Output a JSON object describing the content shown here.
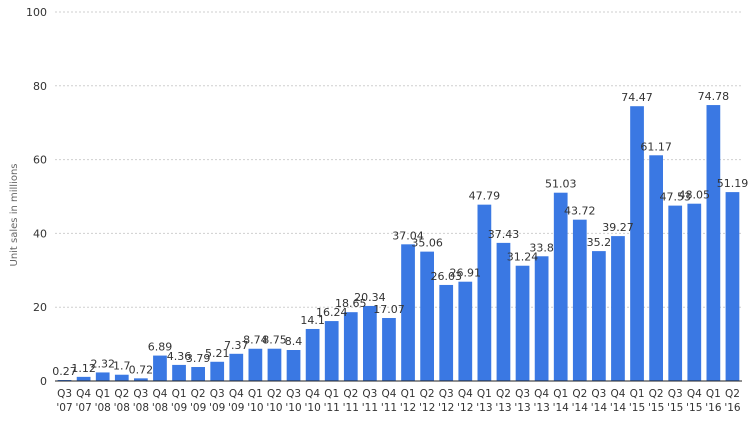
{
  "chart_data": {
    "type": "bar",
    "ylabel": "Unit sales in millions",
    "ylim": [
      0,
      100
    ],
    "yticks": [
      0,
      20,
      40,
      60,
      80,
      100
    ],
    "grid": true,
    "bar_color": "#3a78e3",
    "categories": [
      [
        "Q3",
        "'07"
      ],
      [
        "Q4",
        "'07"
      ],
      [
        "Q1",
        "'08"
      ],
      [
        "Q2",
        "'08"
      ],
      [
        "Q3",
        "'08"
      ],
      [
        "Q4",
        "'08"
      ],
      [
        "Q1",
        "'09"
      ],
      [
        "Q2",
        "'09"
      ],
      [
        "Q3",
        "'09"
      ],
      [
        "Q4",
        "'09"
      ],
      [
        "Q1",
        "'10"
      ],
      [
        "Q2",
        "'10"
      ],
      [
        "Q3",
        "'10"
      ],
      [
        "Q4",
        "'10"
      ],
      [
        "Q1",
        "'11"
      ],
      [
        "Q2",
        "'11"
      ],
      [
        "Q3",
        "'11"
      ],
      [
        "Q4",
        "'11"
      ],
      [
        "Q1",
        "'12"
      ],
      [
        "Q2",
        "'12"
      ],
      [
        "Q3",
        "'12"
      ],
      [
        "Q4",
        "'12"
      ],
      [
        "Q1",
        "'13"
      ],
      [
        "Q2",
        "'13"
      ],
      [
        "Q3",
        "'13"
      ],
      [
        "Q4",
        "'13"
      ],
      [
        "Q1",
        "'14"
      ],
      [
        "Q2",
        "'14"
      ],
      [
        "Q3",
        "'14"
      ],
      [
        "Q4",
        "'14"
      ],
      [
        "Q1",
        "'15"
      ],
      [
        "Q2",
        "'15"
      ],
      [
        "Q3",
        "'15"
      ],
      [
        "Q4",
        "'15"
      ],
      [
        "Q1",
        "'16"
      ],
      [
        "Q2",
        "'16"
      ]
    ],
    "values": [
      0.27,
      1.12,
      2.32,
      1.7,
      0.72,
      6.89,
      4.36,
      3.79,
      5.21,
      7.37,
      8.74,
      8.75,
      8.4,
      14.1,
      16.24,
      18.65,
      20.34,
      17.07,
      37.04,
      35.06,
      26.03,
      26.91,
      47.79,
      37.43,
      31.24,
      33.8,
      51.03,
      43.72,
      35.2,
      39.27,
      74.47,
      61.17,
      47.53,
      48.05,
      74.78,
      51.19
    ]
  }
}
